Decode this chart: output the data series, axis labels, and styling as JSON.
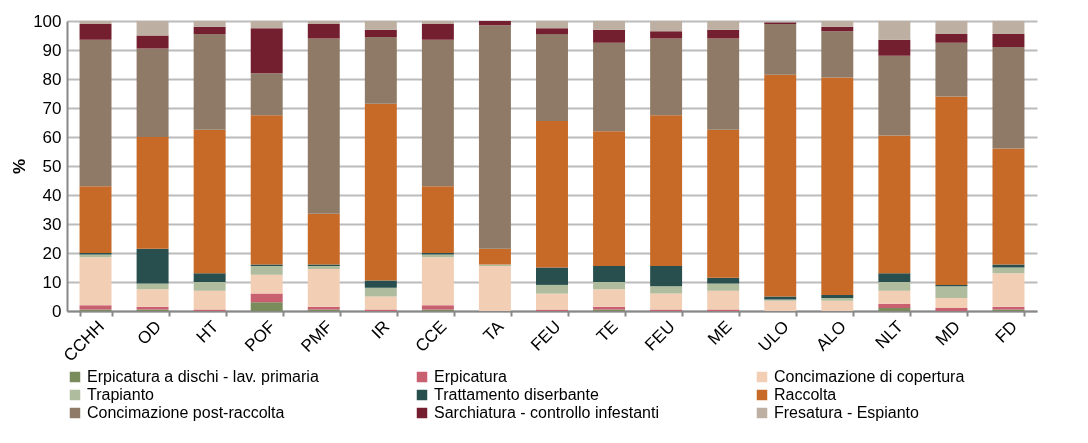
{
  "chart_data": {
    "type": "bar",
    "stacked": true,
    "ylabel": "%",
    "ylim": [
      0,
      100
    ],
    "yticks": [
      0,
      10,
      20,
      30,
      40,
      50,
      60,
      70,
      80,
      90,
      100
    ],
    "grid": "y",
    "legend": "bottom",
    "categories": [
      "CCHH",
      "OD",
      "HT",
      "POF",
      "PMF",
      "IR",
      "CCE",
      "TA",
      "FEU",
      "TE",
      "FEU",
      "ME",
      "ULO",
      "ALO",
      "NLT",
      "MD",
      "FD"
    ],
    "series": [
      {
        "name": "Erpicatura a dischi - lav. primaria",
        "color": "#7a8c5c",
        "values": [
          0.5,
          0.5,
          0,
          3,
          0.5,
          0,
          0.5,
          0,
          0,
          0.5,
          0,
          0,
          0,
          0,
          1,
          0,
          0.5
        ]
      },
      {
        "name": "Erpicatura",
        "color": "#c96070",
        "values": [
          1.5,
          1,
          0.5,
          3,
          1,
          0.5,
          1.5,
          0,
          0.5,
          1,
          0.5,
          0.5,
          0,
          0,
          1.5,
          1,
          1
        ]
      },
      {
        "name": "Concimazione di copertura",
        "color": "#f2cfb4",
        "values": [
          16.5,
          6,
          6.5,
          6.5,
          13,
          4.5,
          16.5,
          15.5,
          5.5,
          6,
          5.5,
          6.5,
          3.5,
          3.5,
          4.5,
          3.5,
          11.5
        ]
      },
      {
        "name": "Trapianto",
        "color": "#b0bc9e",
        "values": [
          1,
          2,
          3,
          3,
          1,
          3,
          1,
          0.5,
          3,
          2.5,
          2.5,
          2.5,
          0.5,
          1,
          3,
          4,
          2
        ]
      },
      {
        "name": "Trattamento diserbante",
        "color": "#284f4d",
        "values": [
          0.5,
          12,
          3,
          0.5,
          0.5,
          2.5,
          0.5,
          0,
          6,
          5.5,
          7,
          2,
          1,
          1,
          3,
          0.5,
          1
        ]
      },
      {
        "name": "Raccolta",
        "color": "#c86a27",
        "values": [
          23,
          38.5,
          49.5,
          51.5,
          17.5,
          61,
          23,
          5.5,
          50.5,
          46.5,
          52,
          51,
          76.5,
          75,
          47.5,
          65,
          40
        ]
      },
      {
        "name": "Concimazione post-raccolta",
        "color": "#8e7a66",
        "values": [
          50.5,
          30.5,
          33,
          14.5,
          60.5,
          23,
          50.5,
          77,
          30,
          30.5,
          26.5,
          31.5,
          17.5,
          16,
          27.5,
          18.5,
          35
        ]
      },
      {
        "name": "Sarchiatura - controllo infestanti",
        "color": "#741f2f",
        "values": [
          5.5,
          4.5,
          2.5,
          15.5,
          5,
          2.5,
          5.5,
          1.5,
          2,
          4.5,
          2.5,
          3,
          0.5,
          1.5,
          5.5,
          3,
          4.5
        ]
      },
      {
        "name": "Fresatura - Espianto",
        "color": "#bdafa2",
        "values": [
          1,
          5,
          2,
          2.5,
          1,
          3,
          1,
          0,
          2.5,
          3,
          3.5,
          3,
          null,
          2,
          6.5,
          4.5,
          4.5
        ]
      }
    ]
  }
}
